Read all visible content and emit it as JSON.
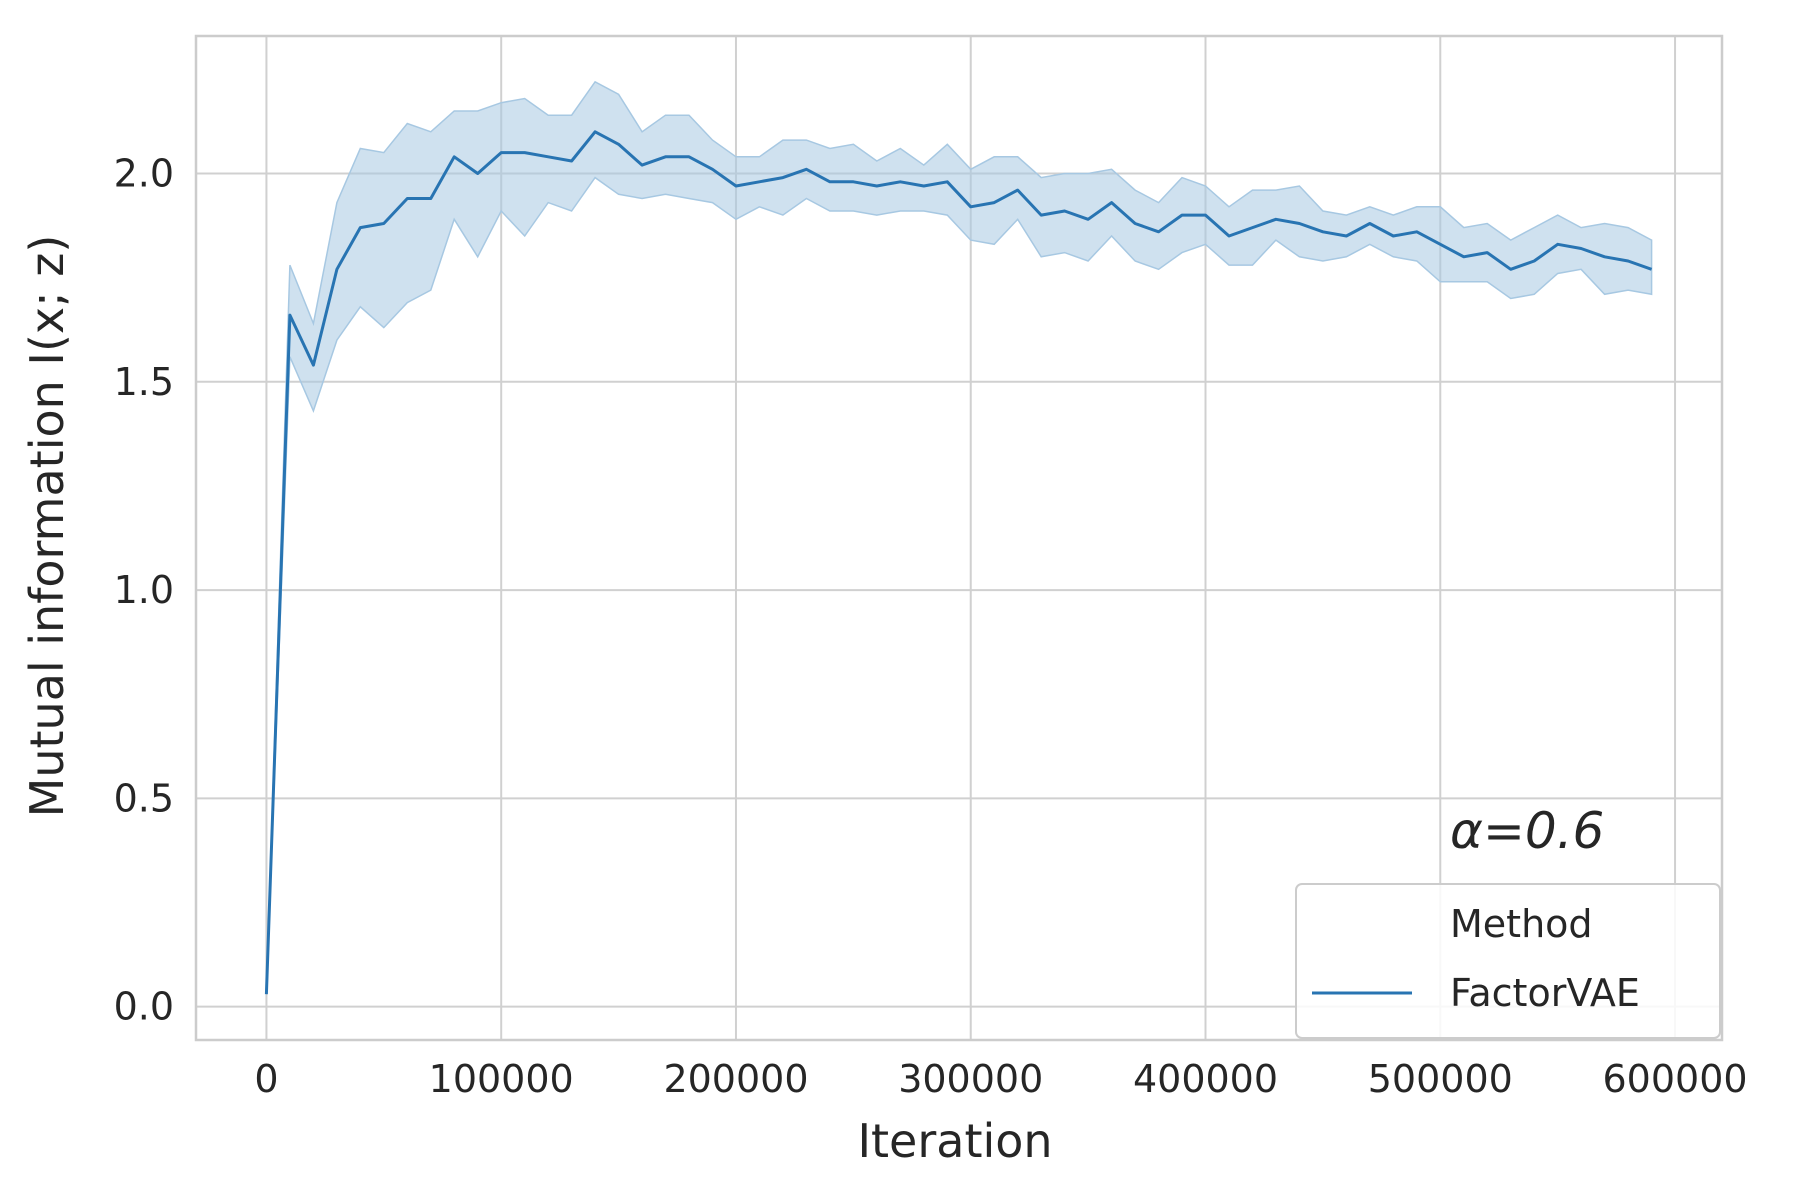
{
  "chart_data": {
    "type": "line",
    "title": "",
    "xlabel": "Iteration",
    "ylabel": "Mutual information I(x; z)",
    "xlim": [
      -30000,
      620000
    ],
    "ylim": [
      -0.08,
      2.33
    ],
    "x_ticks": [
      0,
      100000,
      200000,
      300000,
      400000,
      500000,
      600000
    ],
    "x_tick_labels": [
      "0",
      "100000",
      "200000",
      "300000",
      "400000",
      "500000",
      "600000"
    ],
    "y_ticks": [
      0.0,
      0.5,
      1.0,
      1.5,
      2.0
    ],
    "y_tick_labels": [
      "0.0",
      "0.5",
      "1.0",
      "1.5",
      "2.0"
    ],
    "grid": true,
    "legend": {
      "title": "Method",
      "position": "bottom-right"
    },
    "annotation": "α=0.6",
    "series": [
      {
        "name": "FactorVAE",
        "color": "#2874b2",
        "band_color": "#a7c8e2",
        "x": [
          0,
          10000,
          20000,
          30000,
          40000,
          50000,
          60000,
          70000,
          80000,
          90000,
          100000,
          110000,
          120000,
          130000,
          140000,
          150000,
          160000,
          170000,
          180000,
          190000,
          200000,
          210000,
          220000,
          230000,
          240000,
          250000,
          260000,
          270000,
          280000,
          290000,
          300000,
          310000,
          320000,
          330000,
          340000,
          350000,
          360000,
          370000,
          380000,
          390000,
          400000,
          410000,
          420000,
          430000,
          440000,
          450000,
          460000,
          470000,
          480000,
          490000,
          500000,
          510000,
          520000,
          530000,
          540000,
          550000,
          560000,
          570000,
          580000,
          590000
        ],
        "y": [
          0.03,
          1.66,
          1.54,
          1.77,
          1.87,
          1.88,
          1.94,
          1.94,
          2.04,
          2.0,
          2.05,
          2.05,
          2.04,
          2.03,
          2.1,
          2.07,
          2.02,
          2.04,
          2.04,
          2.01,
          1.97,
          1.98,
          1.99,
          2.01,
          1.98,
          1.98,
          1.97,
          1.98,
          1.97,
          1.98,
          1.92,
          1.93,
          1.96,
          1.9,
          1.91,
          1.89,
          1.93,
          1.88,
          1.86,
          1.9,
          1.9,
          1.85,
          1.87,
          1.89,
          1.88,
          1.86,
          1.85,
          1.88,
          1.85,
          1.86,
          1.83,
          1.8,
          1.81,
          1.77,
          1.79,
          1.83,
          1.82,
          1.8,
          1.79,
          1.77
        ],
        "lower": [
          0.03,
          1.56,
          1.43,
          1.6,
          1.68,
          1.63,
          1.69,
          1.72,
          1.89,
          1.8,
          1.91,
          1.85,
          1.93,
          1.91,
          1.99,
          1.95,
          1.94,
          1.95,
          1.94,
          1.93,
          1.89,
          1.92,
          1.9,
          1.94,
          1.91,
          1.91,
          1.9,
          1.91,
          1.91,
          1.9,
          1.84,
          1.83,
          1.89,
          1.8,
          1.81,
          1.79,
          1.85,
          1.79,
          1.77,
          1.81,
          1.83,
          1.78,
          1.78,
          1.84,
          1.8,
          1.79,
          1.8,
          1.83,
          1.8,
          1.79,
          1.74,
          1.74,
          1.74,
          1.7,
          1.71,
          1.76,
          1.77,
          1.71,
          1.72,
          1.71
        ],
        "upper": [
          0.03,
          1.78,
          1.64,
          1.93,
          2.06,
          2.05,
          2.12,
          2.1,
          2.15,
          2.15,
          2.17,
          2.18,
          2.14,
          2.14,
          2.22,
          2.19,
          2.1,
          2.14,
          2.14,
          2.08,
          2.04,
          2.04,
          2.08,
          2.08,
          2.06,
          2.07,
          2.03,
          2.06,
          2.02,
          2.07,
          2.01,
          2.04,
          2.04,
          1.99,
          2.0,
          2.0,
          2.01,
          1.96,
          1.93,
          1.99,
          1.97,
          1.92,
          1.96,
          1.96,
          1.97,
          1.91,
          1.9,
          1.92,
          1.9,
          1.92,
          1.92,
          1.87,
          1.88,
          1.84,
          1.87,
          1.9,
          1.87,
          1.88,
          1.87,
          1.84
        ]
      }
    ]
  }
}
